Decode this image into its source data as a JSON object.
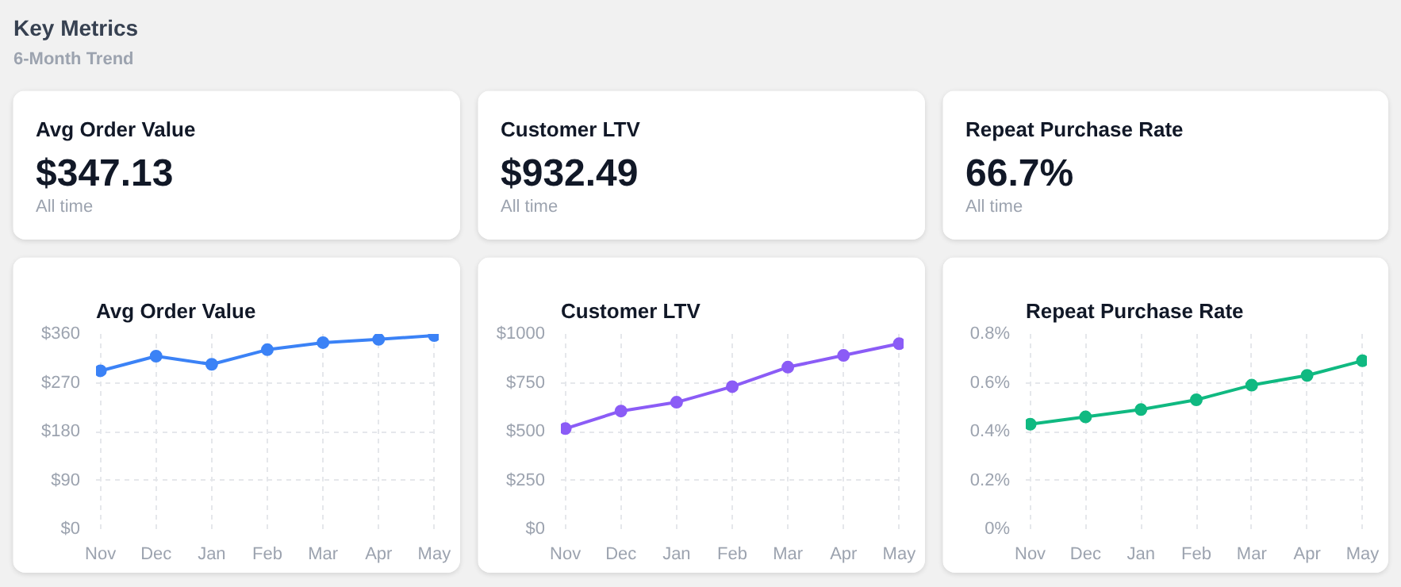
{
  "chart_data": [
    {
      "type": "other",
      "title": "Key Metrics",
      "subtitle": "6-Month Trend"
    },
    {
      "type": "other",
      "title": "Avg Order Value",
      "annotations": [
        "$347.13",
        "All time"
      ]
    },
    {
      "type": "other",
      "title": "Customer LTV",
      "annotations": [
        "$932.49",
        "All time"
      ]
    },
    {
      "type": "other",
      "title": "Repeat Purchase Rate",
      "annotations": [
        "66.7%",
        "All time"
      ]
    },
    {
      "type": "line",
      "title": "Avg Order Value",
      "categories": [
        "Nov",
        "Dec",
        "Jan",
        "Feb",
        "Mar",
        "Apr",
        "May"
      ],
      "series": [
        {
          "color": "#3b82f6",
          "values": [
            292,
            319,
            304,
            331,
            344,
            350,
            357
          ]
        }
      ],
      "ylim": [
        0,
        360
      ],
      "yticks": [
        {
          "value": 0,
          "label": "$0"
        },
        {
          "value": 90,
          "label": "$90"
        },
        {
          "value": 180,
          "label": "$180"
        },
        {
          "value": 270,
          "label": "$270"
        },
        {
          "value": 360,
          "label": "$360"
        }
      ],
      "grid": true,
      "marker": "circle"
    },
    {
      "type": "line",
      "title": "Customer LTV",
      "categories": [
        "Nov",
        "Dec",
        "Jan",
        "Feb",
        "Mar",
        "Apr",
        "May"
      ],
      "series": [
        {
          "color": "#8b5cf6",
          "values": [
            515,
            605,
            650,
            730,
            830,
            890,
            950
          ]
        }
      ],
      "ylim": [
        0,
        1000
      ],
      "yticks": [
        {
          "value": 0,
          "label": "$0"
        },
        {
          "value": 250,
          "label": "$250"
        },
        {
          "value": 500,
          "label": "$500"
        },
        {
          "value": 750,
          "label": "$750"
        },
        {
          "value": 1000,
          "label": "$1000"
        }
      ],
      "grid": true,
      "marker": "circle"
    },
    {
      "type": "line",
      "title": "Repeat Purchase Rate",
      "categories": [
        "Nov",
        "Dec",
        "Jan",
        "Feb",
        "Mar",
        "Apr",
        "May"
      ],
      "series": [
        {
          "color": "#10b981",
          "values": [
            0.43,
            0.46,
            0.49,
            0.53,
            0.59,
            0.63,
            0.69
          ]
        }
      ],
      "ylim": [
        0,
        0.8
      ],
      "yticks": [
        {
          "value": 0,
          "label": "0%"
        },
        {
          "value": 0.2,
          "label": "0.2%"
        },
        {
          "value": 0.4,
          "label": "0.4%"
        },
        {
          "value": 0.6,
          "label": "0.6%"
        },
        {
          "value": 0.8,
          "label": "0.8%"
        }
      ],
      "grid": true,
      "marker": "circle"
    }
  ]
}
